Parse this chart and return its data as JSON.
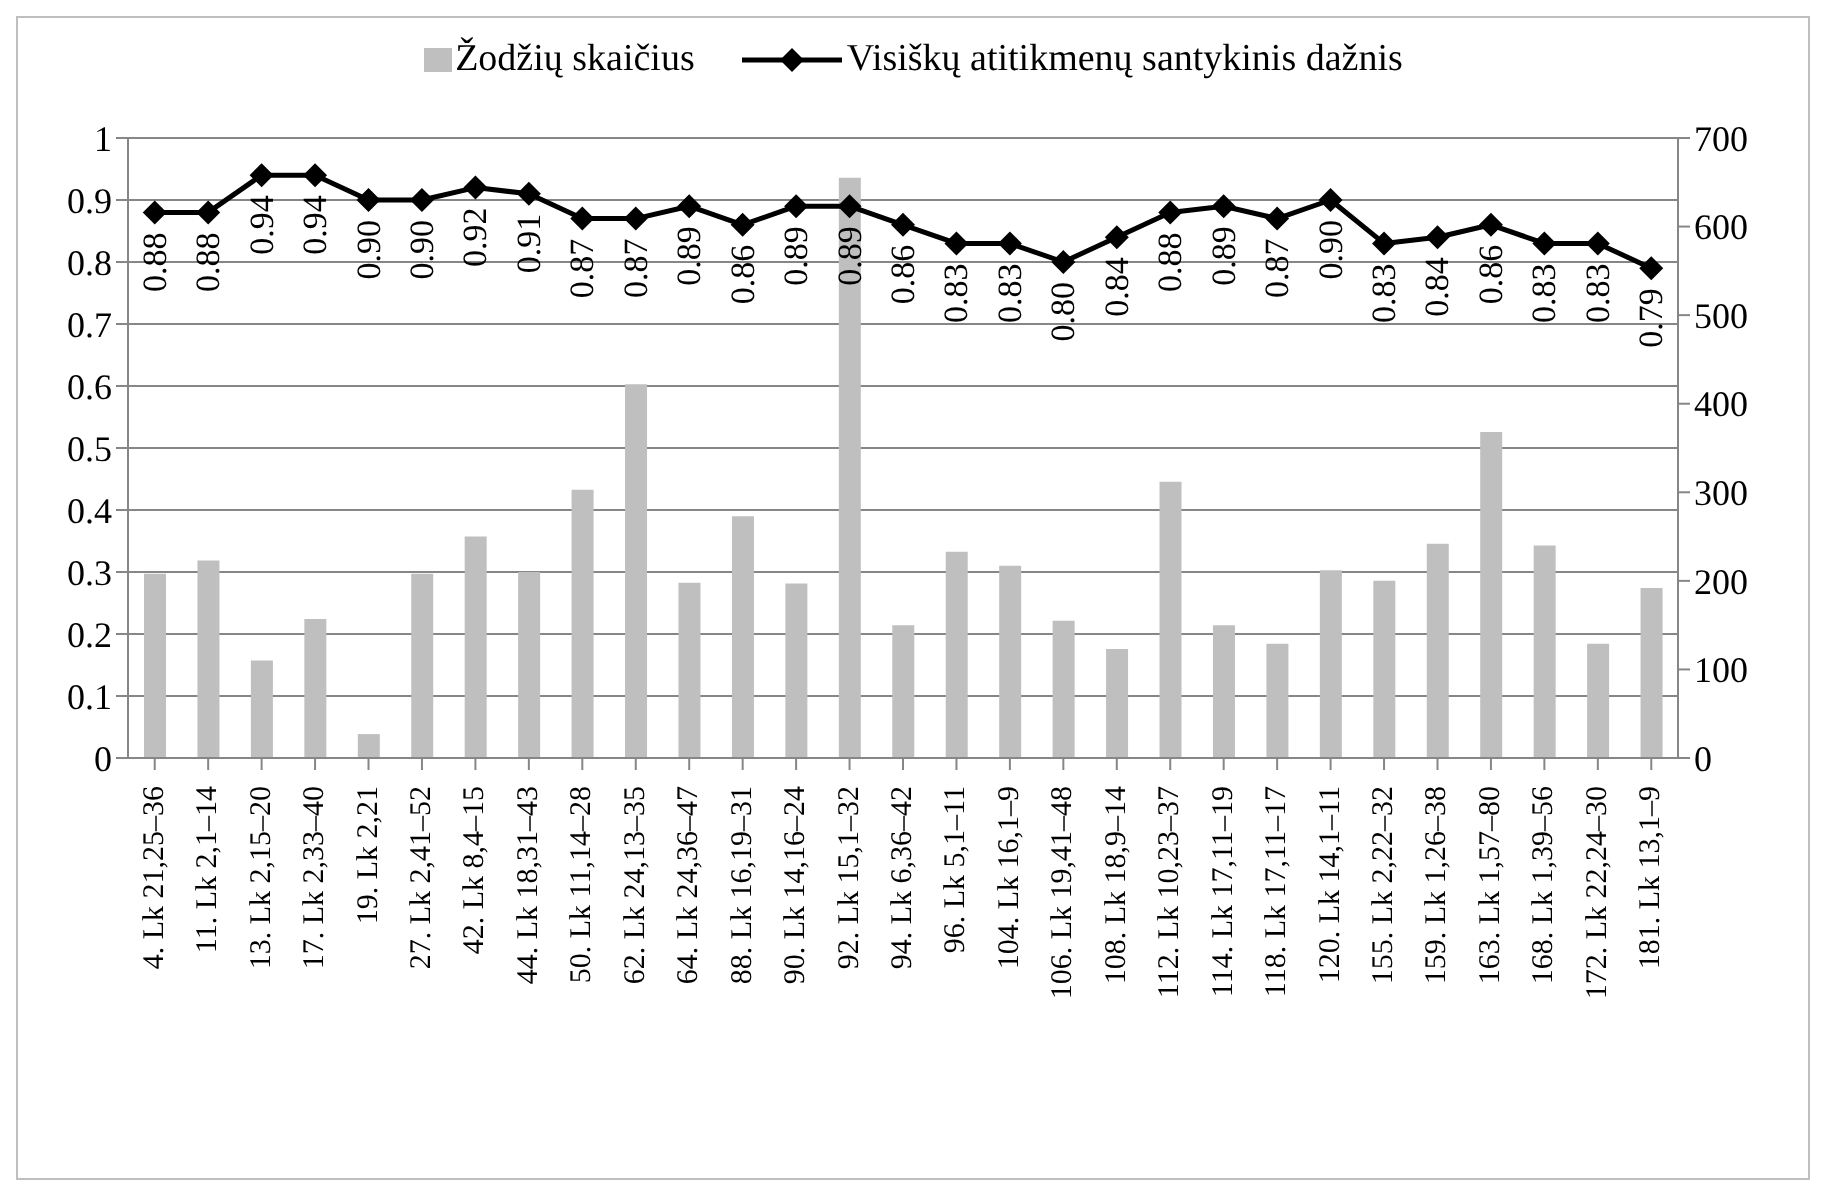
{
  "chart_data": {
    "type": "bar",
    "categories": [
      "4. Lk 21,25–36",
      "11. Lk 2,1–14",
      "13. Lk 2,15–20",
      "17. Lk 2,33–40",
      "19. Lk 2,21",
      "27. Lk 2,41–52",
      "42. Lk 8,4–15",
      "44. Lk 18,31–43",
      "50. Lk 11,14–28",
      "62. Lk 24,13–35",
      "64. Lk 24,36–47",
      "88. Lk 16,19–31",
      "90. Lk 14,16–24",
      "92. Lk 15,1–32",
      "94. Lk 6,36–42",
      "96. Lk 5,1–11",
      "104. Lk 16,1–9",
      "106. Lk 19,41–48",
      "108. Lk 18,9–14",
      "112. Lk 10,23–37",
      "114. Lk 17,11–19",
      "118. Lk 17,11–17",
      "120. Lk 14,1–11",
      "155. Lk 2,22–32",
      "159. Lk 1,26–38",
      "163. Lk 1,57–80",
      "168. Lk 1,39–56",
      "172. Lk 22,24–30",
      "181. Lk 13,1–9"
    ],
    "series": [
      {
        "name": "Žodžių skaičius",
        "axis": "y2",
        "color": "#bfbfbf",
        "values": [
          208,
          223,
          110,
          157,
          27,
          208,
          250,
          210,
          303,
          422,
          198,
          273,
          197,
          655,
          150,
          233,
          217,
          155,
          123,
          312,
          150,
          129,
          212,
          200,
          242,
          368,
          240,
          129,
          192
        ]
      },
      {
        "name": "Visiškų atitikmenų santykinis dažnis",
        "type": "line",
        "color": "#000000",
        "marker": "diamond",
        "values": [
          0.88,
          0.88,
          0.94,
          0.94,
          0.9,
          0.9,
          0.92,
          0.91,
          0.87,
          0.87,
          0.89,
          0.86,
          0.89,
          0.89,
          0.86,
          0.83,
          0.83,
          0.8,
          0.84,
          0.88,
          0.89,
          0.87,
          0.9,
          0.83,
          0.84,
          0.86,
          0.83,
          0.83,
          0.79
        ],
        "value_labels": [
          "0.88",
          "0.88",
          "0.94",
          "0.94",
          "0.90",
          "0.90",
          "0.92",
          "0.91",
          "0.87",
          "0.87",
          "0.89",
          "0.86",
          "0.89",
          "0.89",
          "0.86",
          "0.83",
          "0.83",
          "0.80",
          "0.84",
          "0.88",
          "0.89",
          "0.87",
          "0.90",
          "0.83",
          "0.84",
          "0.86",
          "0.83",
          "0.83",
          "0.79"
        ]
      }
    ],
    "ylim": [
      0,
      1
    ],
    "yticks": [
      0,
      0.1,
      0.2,
      0.3,
      0.4,
      0.5,
      0.6,
      0.7,
      0.8,
      0.9,
      1
    ],
    "y2lim": [
      0,
      700
    ],
    "y2ticks": [
      0,
      100,
      200,
      300,
      400,
      500,
      600,
      700
    ],
    "grid": "y",
    "legend": "top"
  }
}
